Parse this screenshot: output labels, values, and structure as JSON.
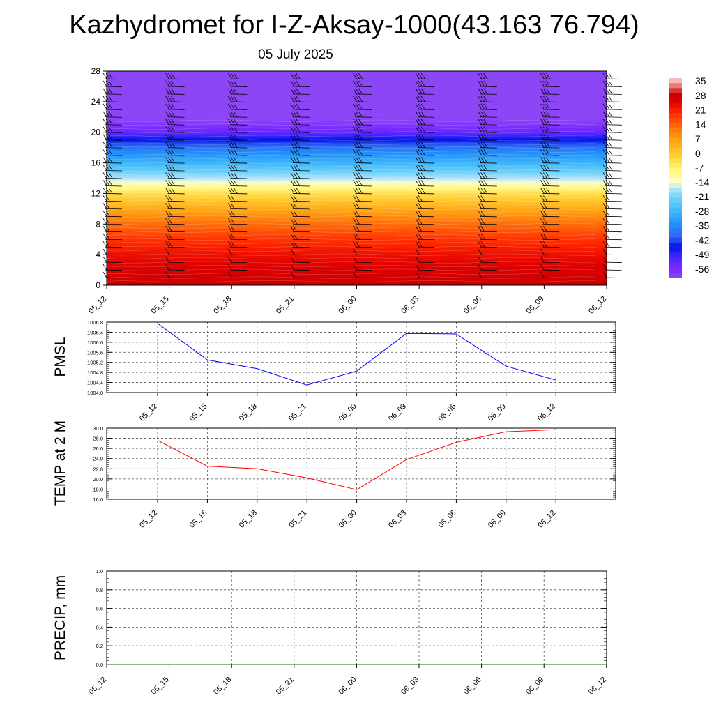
{
  "title": "Kazhydromet for I-Z-Aksay-1000(43.163 76.794)",
  "subtitle": "05 July 2025",
  "chart_data": [
    {
      "type": "heatmap",
      "name": "cross-section",
      "xlabel": "",
      "ylabel": "",
      "x_ticks": [
        "05_12",
        "05_15",
        "05_18",
        "05_21",
        "06_00",
        "06_03",
        "06_06",
        "06_09",
        "06_12"
      ],
      "y_ticks": [
        0,
        4,
        8,
        12,
        16,
        20,
        24,
        28
      ],
      "ylim": [
        0,
        28
      ],
      "colorbar_labels": [
        "35",
        "28",
        "21",
        "14",
        "7",
        "0",
        "-7",
        "-14",
        "-21",
        "-28",
        "-35",
        "-42",
        "-49",
        "-56"
      ],
      "colorbar_range": [
        -60,
        38
      ],
      "temperature_profile": {
        "levels": [
          0,
          2,
          4,
          6,
          8,
          10,
          12,
          13,
          14,
          16,
          18,
          19,
          20,
          21,
          22,
          24,
          28
        ],
        "values": [
          30,
          27,
          24,
          20,
          14,
          6,
          -3,
          -10,
          -17,
          -28,
          -38,
          -45,
          -53,
          -58,
          -60,
          -60,
          -60
        ]
      },
      "wind_barb_columns": 9,
      "wind_barb_levels": [
        1,
        2,
        3,
        4,
        5,
        6,
        7,
        8,
        9,
        10,
        11,
        12,
        13,
        14,
        15,
        16,
        17,
        18,
        19,
        20,
        21,
        22,
        23,
        24,
        25,
        26,
        27
      ]
    },
    {
      "type": "line",
      "name": "pmsl",
      "ylabel": "PMSL",
      "x": [
        "05_12",
        "05_15",
        "05_18",
        "05_21",
        "06_00",
        "06_03",
        "06_06",
        "06_09",
        "06_12"
      ],
      "series": [
        {
          "values": [
            1006.75,
            1005.3,
            1004.95,
            1004.3,
            1004.85,
            1006.35,
            1006.33,
            1005.05,
            1004.5
          ],
          "color": "#0000ff"
        }
      ],
      "ylim": [
        1004.0,
        1006.8
      ],
      "y_ticks": [
        "1004.0",
        "1004.4",
        "1004.8",
        "1005.2",
        "1005.6",
        "1006.0",
        "1006.4",
        "1006.8"
      ]
    },
    {
      "type": "line",
      "name": "temp2m",
      "ylabel": "TEMP at 2 M",
      "x": [
        "05_12",
        "05_15",
        "05_18",
        "05_21",
        "06_00",
        "06_03",
        "06_06",
        "06_09",
        "06_12"
      ],
      "series": [
        {
          "values": [
            27.6,
            22.5,
            22.0,
            20.2,
            17.9,
            23.8,
            27.2,
            29.3,
            29.7
          ],
          "color": "#ff0000"
        }
      ],
      "ylim": [
        16.0,
        30.0
      ],
      "y_ticks": [
        "16.0",
        "18.0",
        "20.0",
        "22.0",
        "24.0",
        "26.0",
        "28.0",
        "30.0"
      ]
    },
    {
      "type": "line",
      "name": "precip",
      "ylabel": "PRECIP, mm",
      "x": [
        "05_12",
        "05_15",
        "05_18",
        "05_21",
        "06_00",
        "06_03",
        "06_06",
        "06_09",
        "06_12"
      ],
      "series": [
        {
          "values": [
            0,
            0,
            0,
            0,
            0,
            0,
            0,
            0,
            0
          ],
          "color": "#008000"
        }
      ],
      "ylim": [
        0.0,
        1.0
      ],
      "y_ticks": [
        "0.0",
        "0.2",
        "0.4",
        "0.6",
        "0.8",
        "1.0"
      ]
    }
  ]
}
